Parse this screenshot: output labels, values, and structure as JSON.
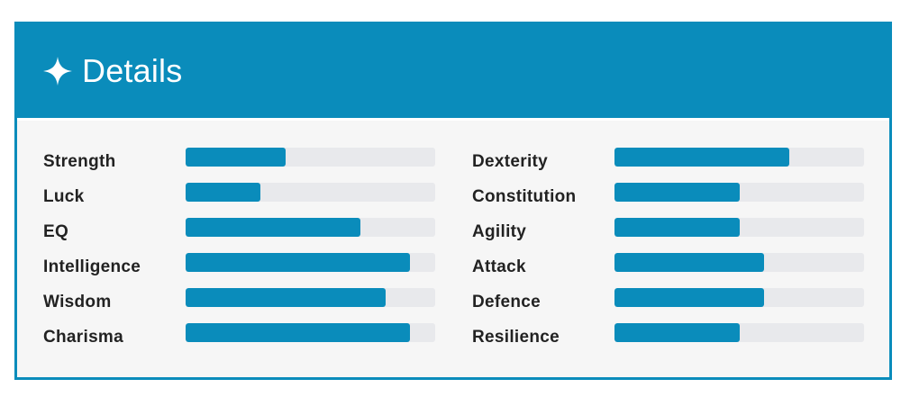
{
  "panel": {
    "title": "Details",
    "icon": "sparkle-icon",
    "accent_color": "#0a8cbb",
    "bar_track_color": "#e8e9ec"
  },
  "stats_left": [
    {
      "label": "Strength",
      "value": 0.4
    },
    {
      "label": "Luck",
      "value": 0.3
    },
    {
      "label": "EQ",
      "value": 0.7
    },
    {
      "label": "Intelligence",
      "value": 0.9
    },
    {
      "label": "Wisdom",
      "value": 0.8
    },
    {
      "label": "Charisma",
      "value": 0.9
    }
  ],
  "stats_right": [
    {
      "label": "Dexterity",
      "value": 0.7
    },
    {
      "label": "Constitution",
      "value": 0.5
    },
    {
      "label": "Agility",
      "value": 0.5
    },
    {
      "label": "Attack",
      "value": 0.6
    },
    {
      "label": "Defence",
      "value": 0.6
    },
    {
      "label": "Resilience",
      "value": 0.5
    }
  ]
}
